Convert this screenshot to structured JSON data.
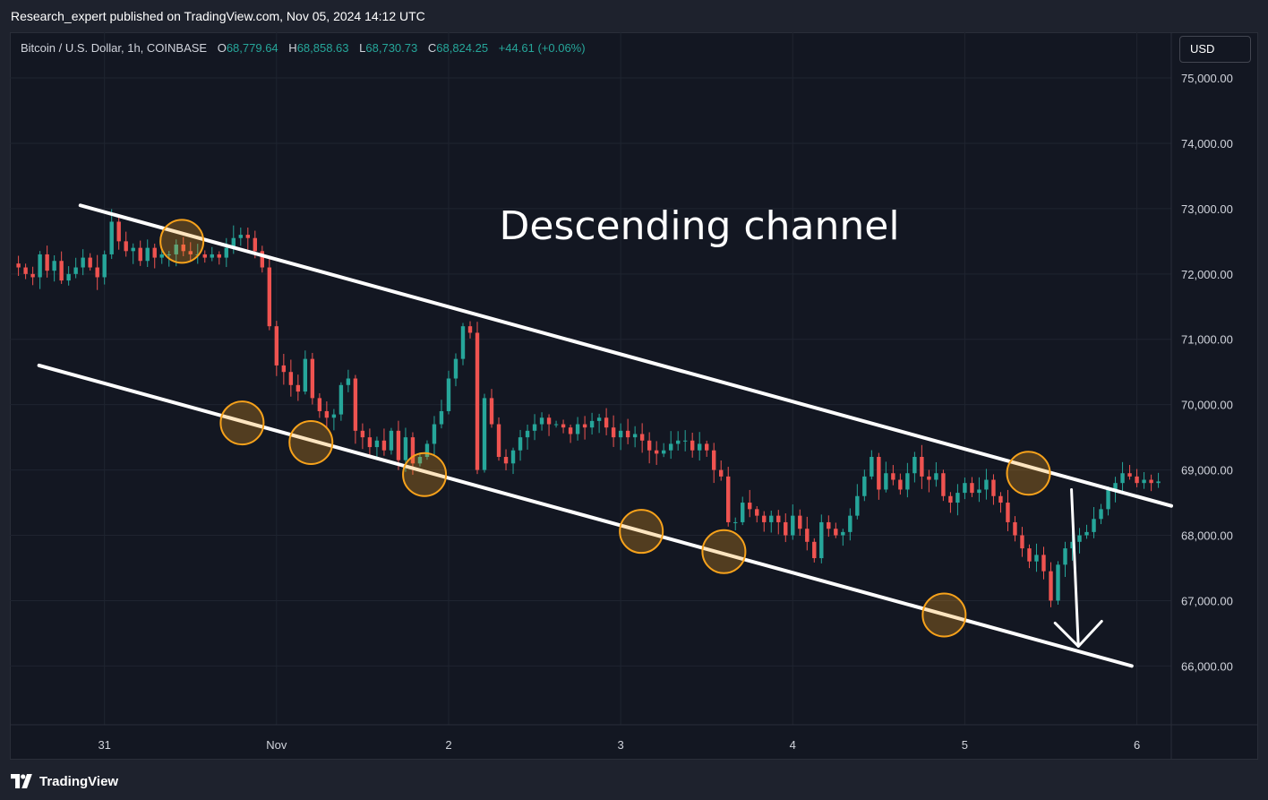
{
  "publish_bar": {
    "text": "Research_expert published on TradingView.com, Nov 05, 2024 14:12 UTC"
  },
  "legend": {
    "symbol": "Bitcoin / U.S. Dollar, 1h, COINBASE",
    "open_label": "O",
    "open": "68,779.64",
    "high_label": "H",
    "high": "68,858.63",
    "low_label": "L",
    "low": "68,730.73",
    "close_label": "C",
    "close": "68,824.25",
    "change": "+44.61 (+0.06%)"
  },
  "currency_button": "USD",
  "footer": {
    "brand": "TradingView"
  },
  "colors": {
    "background": "#131722",
    "grid": "#1f2430",
    "up": "#26a69a",
    "down": "#ef5350",
    "channel": "#ffffff",
    "marker_stroke": "#f7a21b",
    "marker_fill": "rgba(247,162,27,0.28)"
  },
  "chart_data": {
    "type": "candlestick",
    "annotation": "Descending channel",
    "x_ticks": [
      "31",
      "Nov",
      "2",
      "3",
      "4",
      "5",
      "6"
    ],
    "y_ticks": [
      "75,000.00",
      "74,000.00",
      "73,000.00",
      "72,000.00",
      "71,000.00",
      "70,000.00",
      "69,000.00",
      "68,000.00",
      "67,000.00",
      "66,000.00"
    ],
    "y_tick_values": [
      75000,
      74000,
      73000,
      72000,
      71000,
      70000,
      69000,
      68000,
      67000,
      66000
    ],
    "x_tick_days": [
      0,
      1,
      2,
      3,
      4,
      5,
      6
    ],
    "xlim_days": [
      -0.55,
      6.2
    ],
    "ylim": [
      65100,
      75700
    ],
    "grid": true,
    "last_close": 68824.25,
    "upper_channel": {
      "start": [
        -0.14,
        73050
      ],
      "end": [
        6.2,
        68450
      ]
    },
    "lower_channel": {
      "start": [
        -0.38,
        70600
      ],
      "end": [
        5.97,
        66000
      ]
    },
    "touch_markers": [
      [
        0.45,
        72500
      ],
      [
        0.8,
        69720
      ],
      [
        1.2,
        69420
      ],
      [
        1.86,
        68930
      ],
      [
        3.12,
        68060
      ],
      [
        3.6,
        67750
      ],
      [
        4.88,
        66780
      ],
      [
        5.37,
        68950
      ]
    ],
    "arrow": {
      "from": [
        5.62,
        68700
      ],
      "to": [
        5.66,
        66300
      ]
    },
    "candles_hourly_close": [
      72100,
      72000,
      71950,
      72300,
      72050,
      72200,
      71900,
      72000,
      72100,
      72250,
      72100,
      71950,
      72300,
      72800,
      72500,
      72350,
      72400,
      72200,
      72400,
      72250,
      72300,
      72300,
      72450,
      72350,
      72300,
      72300,
      72250,
      72300,
      72250,
      72400,
      72550,
      72600,
      72550,
      72350,
      72100,
      71200,
      70600,
      70500,
      70300,
      70200,
      70700,
      70100,
      69900,
      69800,
      69850,
      70300,
      70400,
      69600,
      69500,
      69350,
      69450,
      69300,
      69600,
      69150,
      69500,
      69100,
      69200,
      69400,
      69700,
      69900,
      70400,
      70700,
      71200,
      71100,
      69000,
      70100,
      69700,
      69200,
      69100,
      69300,
      69500,
      69600,
      69700,
      69800,
      69700,
      69700,
      69650,
      69550,
      69700,
      69650,
      69750,
      69800,
      69650,
      69500,
      69600,
      69500,
      69550,
      69450,
      69300,
      69250,
      69300,
      69400,
      69450,
      69450,
      69300,
      69400,
      69300,
      69000,
      68900,
      68200,
      68200,
      68500,
      68400,
      68300,
      68200,
      68300,
      68200,
      68000,
      68300,
      68100,
      67900,
      67650,
      68200,
      68100,
      68000,
      68050,
      68300,
      68600,
      68900,
      69200,
      68700,
      68950,
      68850,
      68700,
      68950,
      69200,
      68900,
      68850,
      68950,
      68600,
      68500,
      68650,
      68800,
      68650,
      68700,
      68850,
      68600,
      68500,
      68200,
      68000,
      67800,
      67600,
      67700,
      67450,
      67000,
      67550,
      67800,
      67900,
      68000,
      68050,
      68250,
      68400,
      68700,
      68800,
      68950,
      68900,
      68800,
      68850,
      68800,
      68824
    ]
  }
}
